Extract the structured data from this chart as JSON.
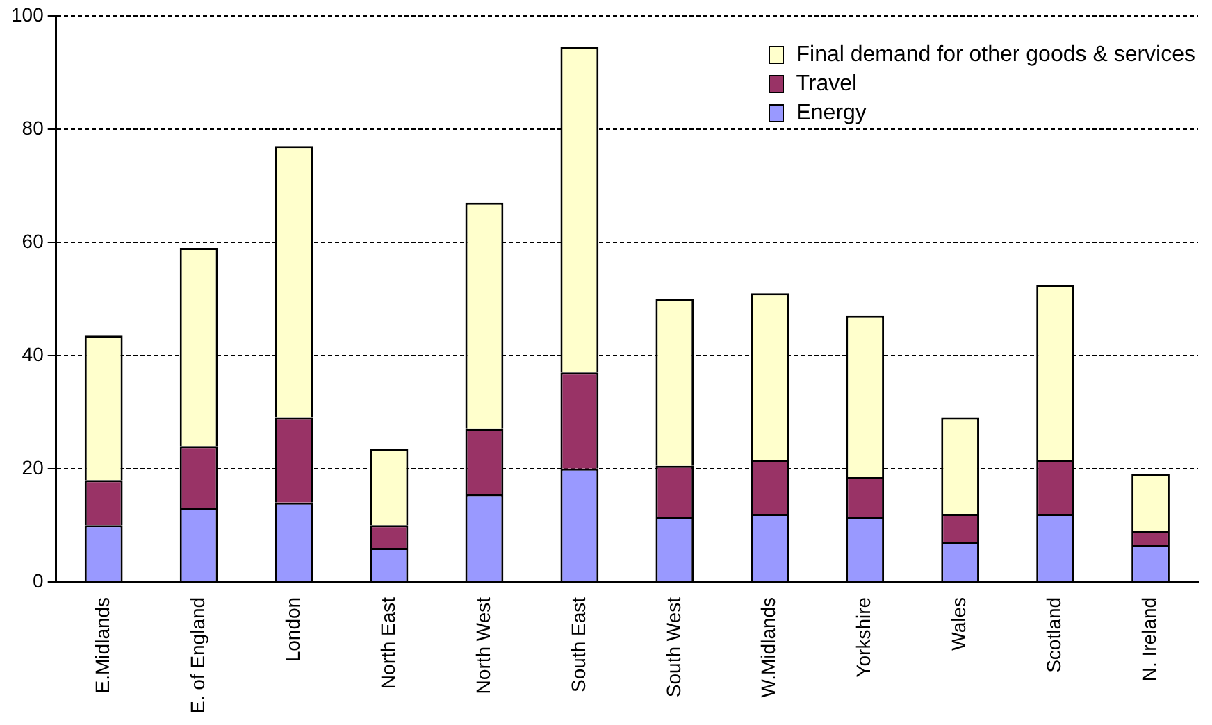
{
  "chart_data": {
    "type": "bar",
    "stacked": true,
    "categories": [
      "E.Midlands",
      "E. of England",
      "London",
      "North East",
      "North West",
      "South East",
      "South West",
      "W.Midlands",
      "Yorkshire",
      "Wales",
      "Scotland",
      "N. Ireland"
    ],
    "series": [
      {
        "name": "Energy",
        "color": "#9999ff",
        "values": [
          10,
          13,
          14,
          6,
          15.5,
          20,
          11.5,
          12,
          11.5,
          7,
          12,
          6.5
        ]
      },
      {
        "name": "Travel",
        "color": "#993366",
        "values": [
          8,
          11,
          15,
          4,
          11.5,
          17,
          9,
          9.5,
          7,
          5,
          9.5,
          2.5
        ]
      },
      {
        "name": "Final demand for other goods & services",
        "color": "#ffffcc",
        "values": [
          25.5,
          35,
          48,
          13.5,
          40,
          57.5,
          29.5,
          29.5,
          28.5,
          17,
          31,
          10
        ]
      }
    ],
    "ylim": [
      0,
      100
    ],
    "yticks": [
      0,
      20,
      40,
      60,
      80,
      100
    ],
    "grid": "y",
    "legend": "top right"
  }
}
